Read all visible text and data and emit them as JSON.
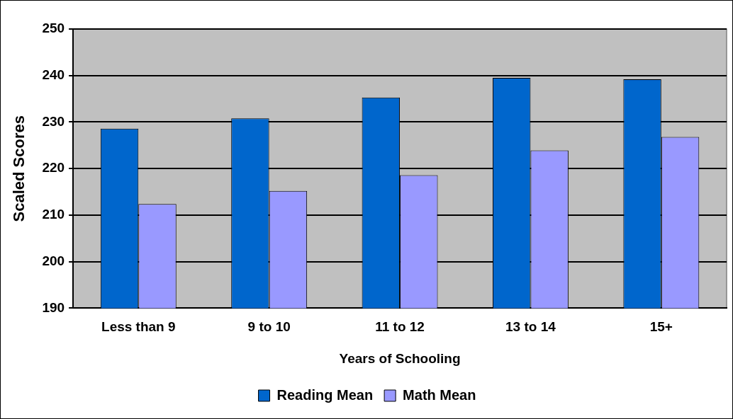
{
  "chart_data": {
    "type": "bar",
    "xlabel": "Years of Schooling",
    "ylabel": "Scaled Scores",
    "categories": [
      "Less than 9",
      "9 to 10",
      "11 to 12",
      "13 to 14",
      "15+"
    ],
    "series": [
      {
        "name": "Reading Mean",
        "color": "#0066cc",
        "values": [
          228.6,
          230.8,
          235.3,
          239.5,
          239.2
        ]
      },
      {
        "name": "Math Mean",
        "color": "#9999ff",
        "values": [
          212.4,
          215.2,
          218.6,
          223.9,
          226.8
        ]
      }
    ],
    "ylim": [
      190,
      250
    ],
    "yticks": [
      190,
      200,
      210,
      220,
      230,
      240,
      250
    ],
    "grid": "y",
    "legend": "bottom"
  }
}
